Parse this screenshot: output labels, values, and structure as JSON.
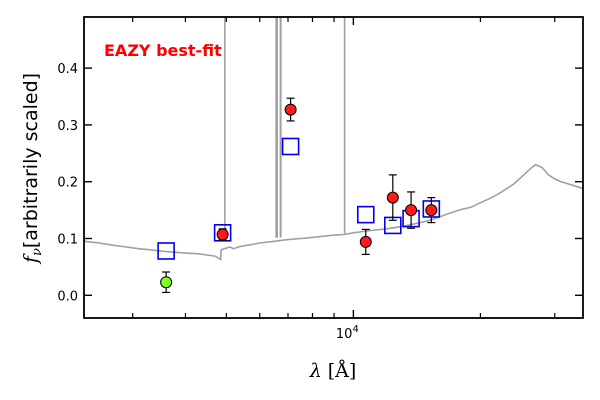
{
  "chart_data": {
    "type": "scatter",
    "title": "",
    "xlabel": "λ [Å]",
    "ylabel": "f_ν [arbitrarily scaled]",
    "ylabel_symbol": "f",
    "ylabel_subscript": "ν",
    "ylabel_text": "[arbitrarily scaled]",
    "xlabel_symbol": "λ",
    "xlabel_text": "[Å]",
    "x_scale": "log",
    "xlim": [
      2300,
      35000
    ],
    "ylim": [
      -0.04,
      0.49
    ],
    "grid": false,
    "x_ticks": [
      {
        "value": 10000,
        "base": "10",
        "exp": "4"
      }
    ],
    "y_ticks": [
      {
        "value": 0.0,
        "label": "0.0"
      },
      {
        "value": 0.1,
        "label": "0.1"
      },
      {
        "value": 0.2,
        "label": "0.2"
      },
      {
        "value": 0.3,
        "label": "0.3"
      },
      {
        "value": 0.4,
        "label": "0.4"
      }
    ],
    "annotation": {
      "text": "EAZY best-fit",
      "color": "#ff0000"
    },
    "colors": {
      "observed": "#ff1a1a",
      "highlighted": "#80ff20",
      "model": "#0000ee",
      "template": "#a0a0a0"
    },
    "series": [
      {
        "kind": "template",
        "x": [
          2300,
          2500,
          2700,
          2900,
          3100,
          3300,
          3500,
          3700,
          3900,
          4100,
          4300,
          4500,
          4700,
          4850,
          4860,
          4900,
          5000,
          5100,
          5200,
          5400,
          5600,
          5800,
          6000,
          6500,
          7000,
          7500,
          8000,
          8500,
          9000,
          9500,
          10000,
          11000,
          12000,
          13000,
          14000,
          15000,
          16000,
          17000,
          18000,
          19000,
          20000,
          21000,
          22000,
          23000,
          24000,
          25000,
          26000,
          27000,
          28000,
          29000,
          30000,
          31000,
          32000,
          33000,
          34000,
          35000
        ],
        "y": [
          0.095,
          0.092,
          0.088,
          0.085,
          0.082,
          0.08,
          0.078,
          0.076,
          0.075,
          0.074,
          0.073,
          0.071,
          0.069,
          0.063,
          0.08,
          0.081,
          0.083,
          0.085,
          0.082,
          0.086,
          0.088,
          0.09,
          0.092,
          0.095,
          0.098,
          0.1,
          0.102,
          0.104,
          0.106,
          0.107,
          0.11,
          0.114,
          0.117,
          0.121,
          0.126,
          0.131,
          0.138,
          0.145,
          0.151,
          0.155,
          0.163,
          0.17,
          0.178,
          0.187,
          0.196,
          0.208,
          0.22,
          0.23,
          0.225,
          0.212,
          0.205,
          0.2,
          0.197,
          0.194,
          0.191,
          0.188
        ]
      },
      {
        "kind": "emission-lines",
        "x": [
          4960,
          6563,
          6600,
          6716,
          6731,
          9532
        ],
        "y": [
          0.49,
          0.49,
          0.49,
          0.49,
          0.49,
          0.49
        ]
      },
      {
        "kind": "model-photometry",
        "x": [
          3600,
          4900,
          7100,
          10700,
          12400,
          13700,
          15300
        ],
        "y": [
          0.078,
          0.11,
          0.262,
          0.142,
          0.123,
          0.135,
          0.152
        ]
      },
      {
        "kind": "observed",
        "x": [
          4900,
          7100,
          10700,
          12400,
          13700,
          15300
        ],
        "y": [
          0.107,
          0.327,
          0.094,
          0.172,
          0.15,
          0.15
        ],
        "err": [
          0.01,
          0.02,
          0.022,
          0.04,
          0.032,
          0.022
        ]
      },
      {
        "kind": "observed-highlighted",
        "x": [
          3600
        ],
        "y": [
          0.023
        ],
        "err": [
          0.018
        ]
      }
    ]
  }
}
